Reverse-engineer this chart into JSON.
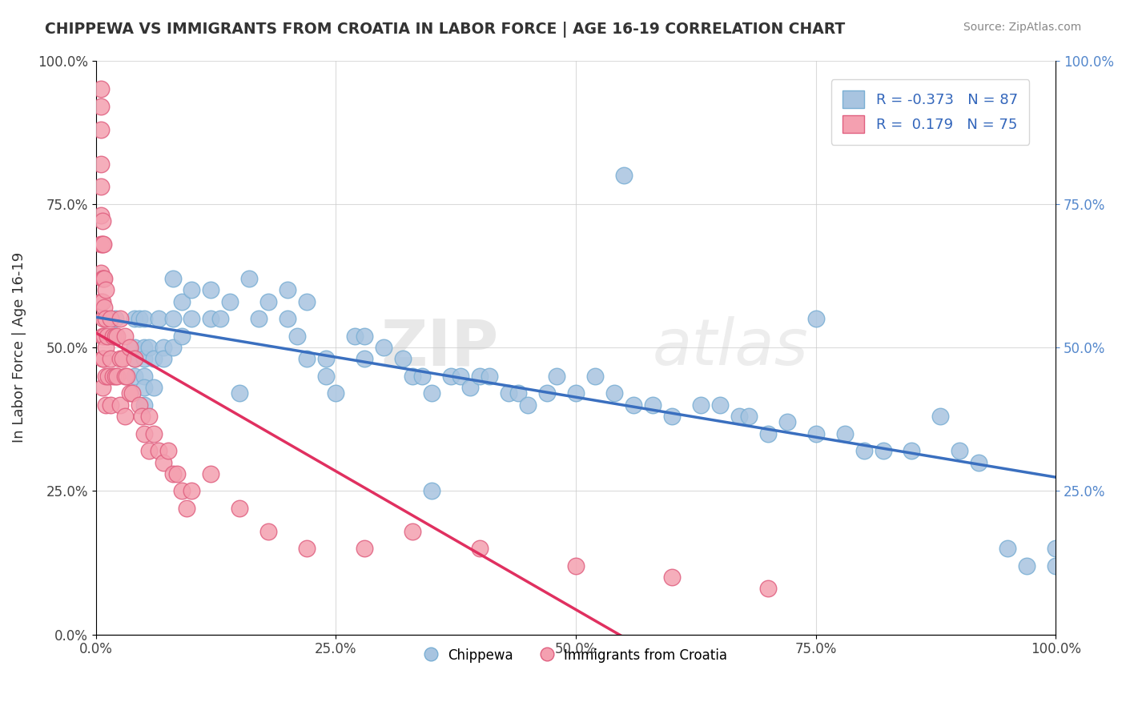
{
  "title": "CHIPPEWA VS IMMIGRANTS FROM CROATIA IN LABOR FORCE | AGE 16-19 CORRELATION CHART",
  "source_text": "Source: ZipAtlas.com",
  "ylabel": "In Labor Force | Age 16-19",
  "xlim": [
    0.0,
    1.0
  ],
  "ylim": [
    0.0,
    1.0
  ],
  "xtick_labels": [
    "0.0%",
    "25.0%",
    "50.0%",
    "75.0%",
    "100.0%"
  ],
  "xtick_values": [
    0.0,
    0.25,
    0.5,
    0.75,
    1.0
  ],
  "ytick_labels": [
    "0.0%",
    "25.0%",
    "50.0%",
    "75.0%",
    "100.0%"
  ],
  "ytick_values": [
    0.0,
    0.25,
    0.5,
    0.75,
    1.0
  ],
  "chippewa_color": "#a8c4e0",
  "chippewa_edge_color": "#7aafd4",
  "croatia_color": "#f4a0b0",
  "croatia_edge_color": "#e06080",
  "chippewa_R": -0.373,
  "chippewa_N": 87,
  "croatia_R": 0.179,
  "croatia_N": 75,
  "trend_blue": "#3a6fbf",
  "trend_pink": "#e03060",
  "watermark_zip": "ZIP",
  "watermark_atlas": "atlas",
  "chippewa_x": [
    0.02,
    0.02,
    0.04,
    0.04,
    0.04,
    0.04,
    0.045,
    0.05,
    0.05,
    0.05,
    0.05,
    0.05,
    0.05,
    0.055,
    0.06,
    0.06,
    0.065,
    0.07,
    0.07,
    0.08,
    0.08,
    0.08,
    0.09,
    0.09,
    0.1,
    0.1,
    0.12,
    0.12,
    0.13,
    0.14,
    0.15,
    0.16,
    0.17,
    0.18,
    0.2,
    0.2,
    0.21,
    0.22,
    0.22,
    0.24,
    0.24,
    0.25,
    0.27,
    0.28,
    0.28,
    0.3,
    0.32,
    0.33,
    0.34,
    0.35,
    0.37,
    0.38,
    0.39,
    0.4,
    0.41,
    0.43,
    0.44,
    0.45,
    0.47,
    0.48,
    0.5,
    0.52,
    0.54,
    0.56,
    0.58,
    0.6,
    0.63,
    0.65,
    0.67,
    0.68,
    0.7,
    0.72,
    0.75,
    0.78,
    0.8,
    0.82,
    0.85,
    0.88,
    0.9,
    0.92,
    0.95,
    0.97,
    1.0,
    1.0,
    0.35,
    0.55,
    0.75
  ],
  "chippewa_y": [
    0.55,
    0.52,
    0.55,
    0.5,
    0.48,
    0.45,
    0.55,
    0.55,
    0.5,
    0.48,
    0.45,
    0.43,
    0.4,
    0.5,
    0.48,
    0.43,
    0.55,
    0.5,
    0.48,
    0.62,
    0.55,
    0.5,
    0.58,
    0.52,
    0.6,
    0.55,
    0.6,
    0.55,
    0.55,
    0.58,
    0.42,
    0.62,
    0.55,
    0.58,
    0.6,
    0.55,
    0.52,
    0.58,
    0.48,
    0.48,
    0.45,
    0.42,
    0.52,
    0.52,
    0.48,
    0.5,
    0.48,
    0.45,
    0.45,
    0.42,
    0.45,
    0.45,
    0.43,
    0.45,
    0.45,
    0.42,
    0.42,
    0.4,
    0.42,
    0.45,
    0.42,
    0.45,
    0.42,
    0.4,
    0.4,
    0.38,
    0.4,
    0.4,
    0.38,
    0.38,
    0.35,
    0.37,
    0.35,
    0.35,
    0.32,
    0.32,
    0.32,
    0.38,
    0.32,
    0.3,
    0.15,
    0.12,
    0.15,
    0.12,
    0.25,
    0.8,
    0.55
  ],
  "croatia_x": [
    0.005,
    0.005,
    0.005,
    0.005,
    0.005,
    0.005,
    0.005,
    0.005,
    0.005,
    0.007,
    0.007,
    0.007,
    0.007,
    0.007,
    0.007,
    0.007,
    0.008,
    0.008,
    0.008,
    0.008,
    0.009,
    0.009,
    0.009,
    0.01,
    0.01,
    0.01,
    0.01,
    0.01,
    0.012,
    0.013,
    0.015,
    0.015,
    0.015,
    0.018,
    0.018,
    0.02,
    0.02,
    0.022,
    0.022,
    0.025,
    0.025,
    0.025,
    0.028,
    0.03,
    0.03,
    0.03,
    0.032,
    0.035,
    0.035,
    0.038,
    0.04,
    0.045,
    0.048,
    0.05,
    0.055,
    0.055,
    0.06,
    0.065,
    0.07,
    0.075,
    0.08,
    0.085,
    0.09,
    0.095,
    0.1,
    0.12,
    0.15,
    0.18,
    0.22,
    0.28,
    0.33,
    0.4,
    0.5,
    0.6,
    0.7
  ],
  "croatia_y": [
    0.95,
    0.92,
    0.88,
    0.82,
    0.78,
    0.73,
    0.68,
    0.63,
    0.58,
    0.72,
    0.68,
    0.62,
    0.58,
    0.52,
    0.48,
    0.43,
    0.68,
    0.62,
    0.55,
    0.48,
    0.62,
    0.57,
    0.52,
    0.6,
    0.55,
    0.5,
    0.45,
    0.4,
    0.52,
    0.45,
    0.55,
    0.48,
    0.4,
    0.52,
    0.45,
    0.52,
    0.45,
    0.52,
    0.45,
    0.55,
    0.48,
    0.4,
    0.48,
    0.52,
    0.45,
    0.38,
    0.45,
    0.5,
    0.42,
    0.42,
    0.48,
    0.4,
    0.38,
    0.35,
    0.38,
    0.32,
    0.35,
    0.32,
    0.3,
    0.32,
    0.28,
    0.28,
    0.25,
    0.22,
    0.25,
    0.28,
    0.22,
    0.18,
    0.15,
    0.15,
    0.18,
    0.15,
    0.12,
    0.1,
    0.08
  ]
}
